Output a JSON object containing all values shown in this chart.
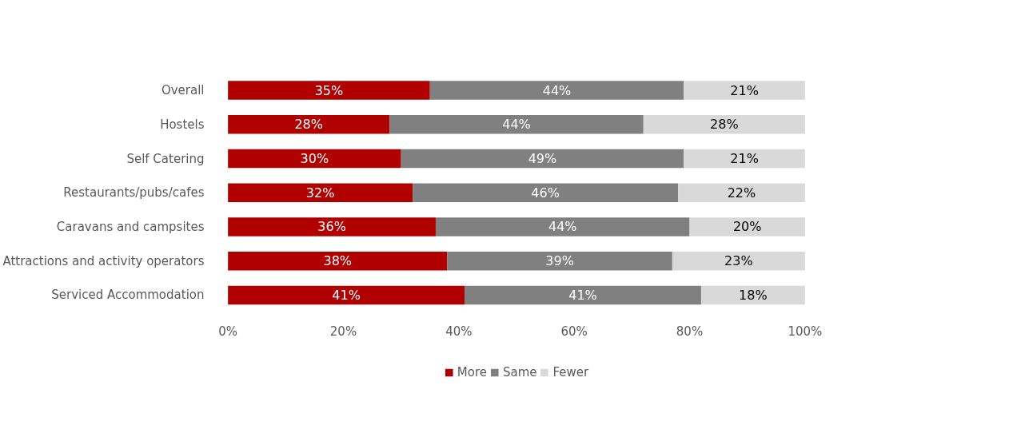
{
  "chart_data": {
    "type": "bar",
    "orientation": "horizontal",
    "stacked": true,
    "categories": [
      "Overall",
      "Hostels",
      "Self Catering",
      "Restaurants/pubs/cafes",
      "Caravans and campsites",
      "Attractions and activity operators",
      "Serviced Accommodation"
    ],
    "series": [
      {
        "name": "More",
        "color": "#b00000",
        "values": [
          35,
          28,
          30,
          32,
          36,
          38,
          41
        ],
        "value_labels": [
          "35%",
          "28%",
          "30%",
          "32%",
          "36%",
          "38%",
          "41%"
        ]
      },
      {
        "name": "Same",
        "color": "#808080",
        "values": [
          44,
          44,
          49,
          46,
          44,
          39,
          41
        ],
        "value_labels": [
          "44%",
          "44%",
          "49%",
          "46%",
          "44%",
          "39%",
          "41%"
        ]
      },
      {
        "name": "Fewer",
        "color": "#d9d9d9",
        "values": [
          21,
          28,
          21,
          22,
          20,
          23,
          18
        ],
        "value_labels": [
          "21%",
          "28%",
          "21%",
          "22%",
          "20%",
          "23%",
          "18%"
        ]
      }
    ],
    "xlim": [
      0,
      100
    ],
    "xticks": [
      {
        "value": 0,
        "label": "0%"
      },
      {
        "value": 20,
        "label": "20%"
      },
      {
        "value": 40,
        "label": "40%"
      },
      {
        "value": 60,
        "label": "60%"
      },
      {
        "value": 80,
        "label": "80%"
      },
      {
        "value": 100,
        "label": "100%"
      }
    ],
    "grid": false,
    "legend": "bottom"
  }
}
